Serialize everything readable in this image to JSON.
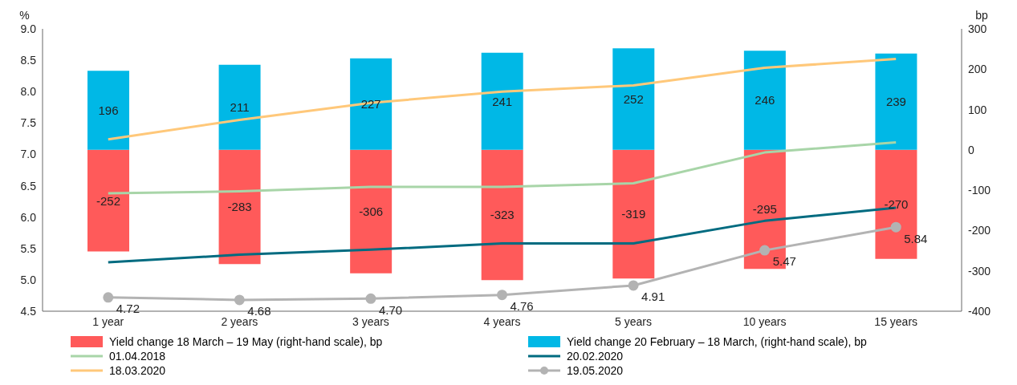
{
  "chart_data": {
    "type": "line",
    "ylabel": "%",
    "y2label": "bp",
    "categories": [
      "1 year",
      "2 years",
      "3 years",
      "4 years",
      "5 years",
      "10 years",
      "15 years"
    ],
    "ylim": [
      4.5,
      9.0
    ],
    "yticks": [
      {
        "value": 4.5,
        "label": "4.5"
      },
      {
        "value": 5,
        "label": "5.0"
      },
      {
        "value": 5.5,
        "label": "5.5"
      },
      {
        "value": 6,
        "label": "6.0"
      },
      {
        "value": 6.5,
        "label": "6.5"
      },
      {
        "value": 7,
        "label": "7.0"
      },
      {
        "value": 7.5,
        "label": "7.5"
      },
      {
        "value": 8,
        "label": "8.0"
      },
      {
        "value": 8.5,
        "label": "8.5"
      },
      {
        "value": 9,
        "label": "9.0"
      }
    ],
    "y2lim": [
      -400,
      300
    ],
    "y2ticks": [
      -400,
      -300,
      -200,
      -100,
      0,
      100,
      200,
      300
    ],
    "stacked": true,
    "legend": "bottom",
    "series": [
      {
        "name": "Yield change 18 March – 19 May (right-hand scale), bp",
        "type": "bar",
        "axis": "y2",
        "color": "#ff5a5a",
        "values": [
          -252,
          -283,
          -306,
          -323,
          -319,
          -295,
          -270
        ],
        "data_labels": true
      },
      {
        "name": "Yield change 20 February – 18 March, (right-hand scale), bp",
        "type": "bar",
        "axis": "y2",
        "color": "#00b8e6",
        "values": [
          196,
          211,
          227,
          241,
          252,
          246,
          239
        ],
        "data_labels": true
      },
      {
        "name": "01.04.2018",
        "color": "#a8d5a8",
        "values": [
          6.38,
          6.41,
          6.48,
          6.48,
          6.54,
          7.03,
          7.19
        ]
      },
      {
        "name": "20.02.2020",
        "color": "#006b80",
        "values": [
          5.28,
          5.4,
          5.48,
          5.58,
          5.58,
          5.94,
          6.15
        ]
      },
      {
        "name": "18.03.2020",
        "color": "#ffc87a",
        "values": [
          7.24,
          7.55,
          7.82,
          8.0,
          8.1,
          8.38,
          8.52
        ]
      },
      {
        "name": "19.05.2020",
        "color": "#b3b3b3",
        "marker": "circle",
        "values": [
          4.72,
          4.68,
          4.7,
          4.76,
          4.91,
          5.47,
          5.84
        ],
        "value_labels": [
          "4.72",
          "4.68",
          "4.70",
          "4.76",
          "4.91",
          "5.47",
          "5.84"
        ]
      }
    ]
  }
}
